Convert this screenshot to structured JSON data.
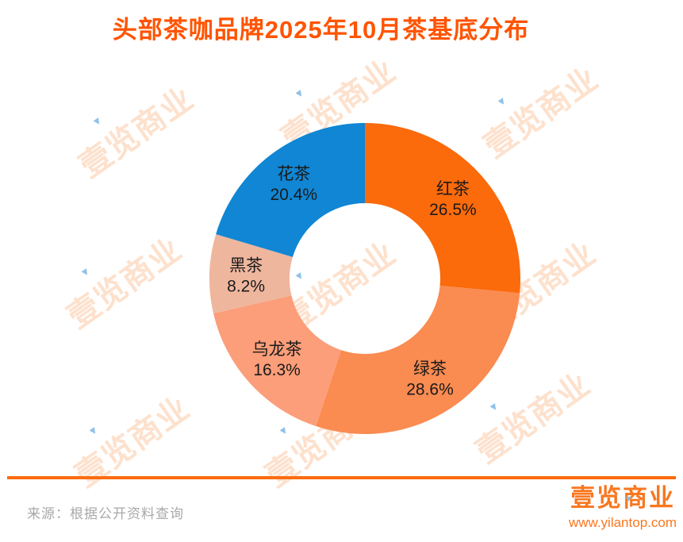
{
  "title": "头部茶咖品牌2025年10月茶基底分布",
  "chart_data": {
    "type": "pie",
    "subtype": "donut",
    "title": "头部茶咖品牌2025年10月茶基底分布",
    "categories": [
      "红茶",
      "绿茶",
      "乌龙茶",
      "黑茶",
      "花茶"
    ],
    "values": [
      26.5,
      28.6,
      16.3,
      8.2,
      20.4
    ],
    "unit": "%",
    "slice_colors": [
      "#FB6A0B",
      "#FA8B51",
      "#FB9E79",
      "#EFB69E",
      "#1086D4"
    ],
    "start_angle_deg": 0,
    "direction": "clockwise",
    "labels_inside_ring": true,
    "legend": "none",
    "slice_names": [
      "slice-hong-cha",
      "slice-lv-cha",
      "slice-wu-long-cha",
      "slice-hei-cha",
      "slice-hua-cha"
    ]
  },
  "watermark": {
    "text": "壹览商业",
    "triangle_glyph": "▼"
  },
  "footer": {
    "source_label": "来源：根据公开资料查询",
    "brand_name": "壹览商业",
    "brand_url": "www.yilantop.com",
    "brand_triangle_glyph": "▼"
  },
  "colors": {
    "title": "#FF5400",
    "label_text": "#1A1A1A",
    "divider": "#FB6C10",
    "source_text": "#A9A9A9",
    "brand_orange": "#F8771F",
    "watermark_orange": "rgba(249,140,60,0.26)",
    "watermark_blue": "#8FC1E9"
  }
}
